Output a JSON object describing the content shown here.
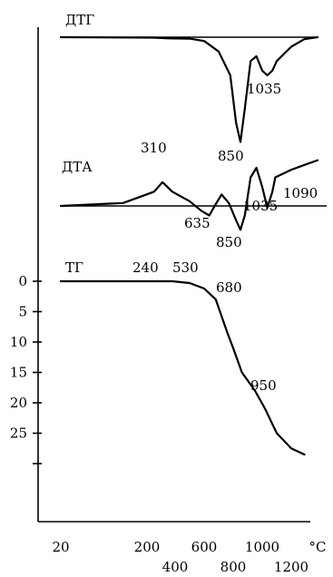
{
  "chart_data": {
    "type": "line",
    "x_axis": {
      "unit": "°C",
      "tick_labels_upper": [
        "20",
        "200",
        "600",
        "1000"
      ],
      "tick_labels_lower": [
        "400",
        "800",
        "1200"
      ]
    },
    "y_axis": {
      "tick_labels": [
        "0",
        "5",
        "10",
        "15",
        "20",
        "25"
      ],
      "ylim": [
        0,
        30
      ],
      "inverted": true
    },
    "panels": [
      {
        "name": "ДТГ",
        "annotations": [
          "850",
          "1035"
        ],
        "points": [
          [
            20,
            0
          ],
          [
            250,
            0.05
          ],
          [
            350,
            0.12
          ],
          [
            500,
            0.15
          ],
          [
            600,
            0.4
          ],
          [
            700,
            1.5
          ],
          [
            780,
            4
          ],
          [
            820,
            9
          ],
          [
            850,
            11
          ],
          [
            880,
            7.5
          ],
          [
            920,
            2.5
          ],
          [
            960,
            2
          ],
          [
            1000,
            3.5
          ],
          [
            1035,
            4
          ],
          [
            1070,
            3.5
          ],
          [
            1100,
            2.5
          ],
          [
            1200,
            1
          ],
          [
            1300,
            0.2
          ],
          [
            1400,
            0
          ]
        ]
      },
      {
        "name": "ДТА",
        "annotations": [
          "310",
          "635",
          "850",
          "1035",
          "1090"
        ],
        "points": [
          [
            20,
            0
          ],
          [
            150,
            0.3
          ],
          [
            250,
            1.5
          ],
          [
            310,
            2.5
          ],
          [
            380,
            1.5
          ],
          [
            500,
            0.5
          ],
          [
            580,
            -0.5
          ],
          [
            635,
            -1
          ],
          [
            680,
            0.2
          ],
          [
            720,
            1.2
          ],
          [
            770,
            0.3
          ],
          [
            820,
            -1.5
          ],
          [
            850,
            -2.5
          ],
          [
            880,
            -1
          ],
          [
            920,
            3
          ],
          [
            960,
            4
          ],
          [
            1000,
            2
          ],
          [
            1035,
            -0.2
          ],
          [
            1070,
            1.5
          ],
          [
            1090,
            3
          ],
          [
            1200,
            3.8
          ],
          [
            1300,
            4.3
          ],
          [
            1400,
            4.8
          ]
        ]
      },
      {
        "name": "ТГ",
        "annotations": [
          "240",
          "530",
          "680",
          "950"
        ],
        "points": [
          [
            20,
            0
          ],
          [
            240,
            0
          ],
          [
            380,
            0
          ],
          [
            500,
            0.3
          ],
          [
            600,
            1.2
          ],
          [
            680,
            3
          ],
          [
            760,
            8.5
          ],
          [
            800,
            11
          ],
          [
            860,
            15
          ],
          [
            950,
            18
          ],
          [
            1020,
            21
          ],
          [
            1100,
            25
          ],
          [
            1200,
            27.5
          ],
          [
            1300,
            28.5
          ]
        ]
      }
    ]
  }
}
